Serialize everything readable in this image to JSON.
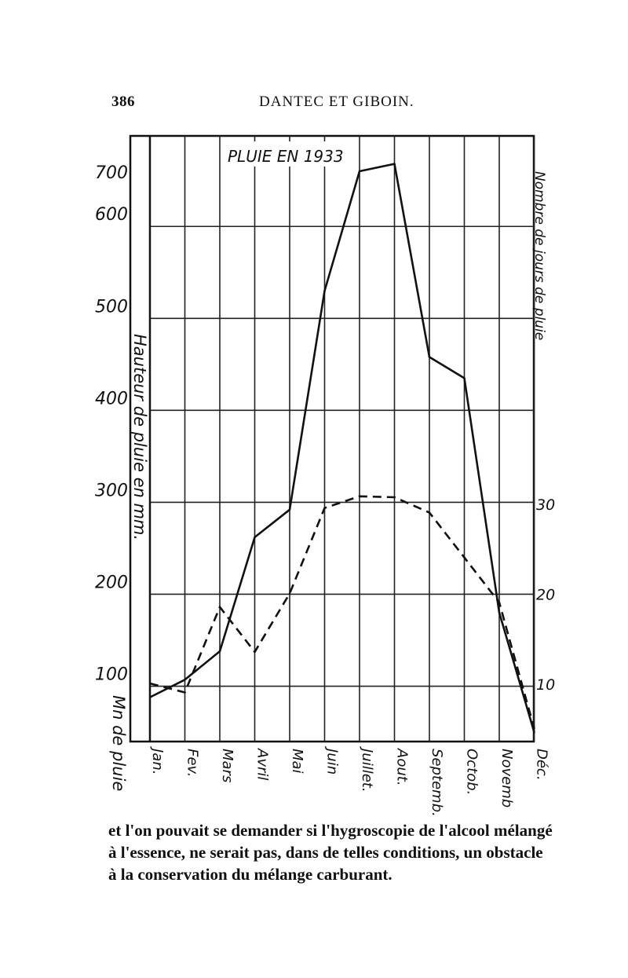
{
  "page": {
    "number": "386",
    "running_title": "DANTEC ET GIBOIN."
  },
  "body_text": {
    "lines": [
      "et l'on pouvait se demander si l'hygroscopie de l'alcool mélangé",
      "à l'essence, ne serait pas, dans de telles conditions, un obstacle",
      "à la conservation du mélange carburant."
    ]
  },
  "chart_data": {
    "type": "line",
    "title": "PLUIE EN 1933",
    "categories": [
      "Jan.",
      "Fev.",
      "Mars",
      "Avril",
      "Mai",
      "Juin",
      "Juillet.",
      "Aout.",
      "Septemb.",
      "Octob.",
      "Novemb",
      "Déc."
    ],
    "ylabel": "Hauteur de pluie en mm.",
    "y2label": "Nombre de jours de pluie",
    "corner_label": "Mn de pluie",
    "y_ticks": [
      100,
      200,
      300,
      400,
      500,
      600,
      700
    ],
    "y_tick_labels": [
      "100",
      "200",
      "300",
      "400",
      "500",
      "600",
      "700"
    ],
    "y2_ticks": [
      10,
      20,
      30
    ],
    "y2_tick_labels": [
      "10",
      "20",
      "30"
    ],
    "series": [
      {
        "axis": "left",
        "style": "solid",
        "values": [
          88,
          107,
          138,
          262,
          292,
          530,
          660,
          668,
          458,
          435,
          180,
          50
        ]
      },
      {
        "axis": "right",
        "style": "dashed",
        "values": [
          10,
          9,
          18.5,
          13.5,
          20,
          29.5,
          30.8,
          30.7,
          29,
          24,
          19,
          5
        ]
      }
    ]
  }
}
